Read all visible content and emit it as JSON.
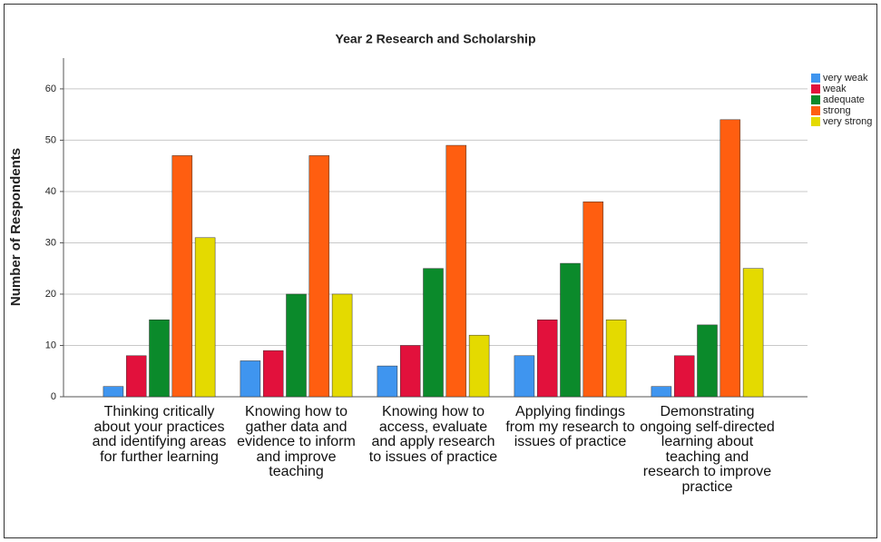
{
  "chart_data": {
    "type": "bar",
    "title": "Year 2 Research and Scholarship",
    "ylabel": "Number of Respondents",
    "categories": [
      "Thinking critically about your practices and identifying areas for further learning",
      "Knowing how to gather data and evidence to inform and improve teaching",
      "Knowing how to access, evaluate and apply research to issues of practice",
      "Applying findings from my research to issues of practice",
      "Demonstrating ongoing self-directed learning about teaching and research to improve practice"
    ],
    "series": [
      {
        "name": "very weak",
        "color": "#3f95ef",
        "values": [
          2,
          7,
          6,
          8,
          2
        ]
      },
      {
        "name": "weak",
        "color": "#e2113c",
        "values": [
          8,
          9,
          10,
          15,
          8
        ]
      },
      {
        "name": "adequate",
        "color": "#0b8a2b",
        "values": [
          15,
          20,
          25,
          26,
          14
        ]
      },
      {
        "name": "strong",
        "color": "#ff5e10",
        "values": [
          47,
          47,
          49,
          38,
          54
        ]
      },
      {
        "name": "very strong",
        "color": "#e4da00",
        "values": [
          31,
          20,
          12,
          15,
          25
        ]
      }
    ],
    "ylim": [
      0,
      66
    ],
    "yticks": [
      0,
      10,
      20,
      30,
      40,
      50,
      60
    ],
    "grid": true,
    "legend": "right"
  }
}
